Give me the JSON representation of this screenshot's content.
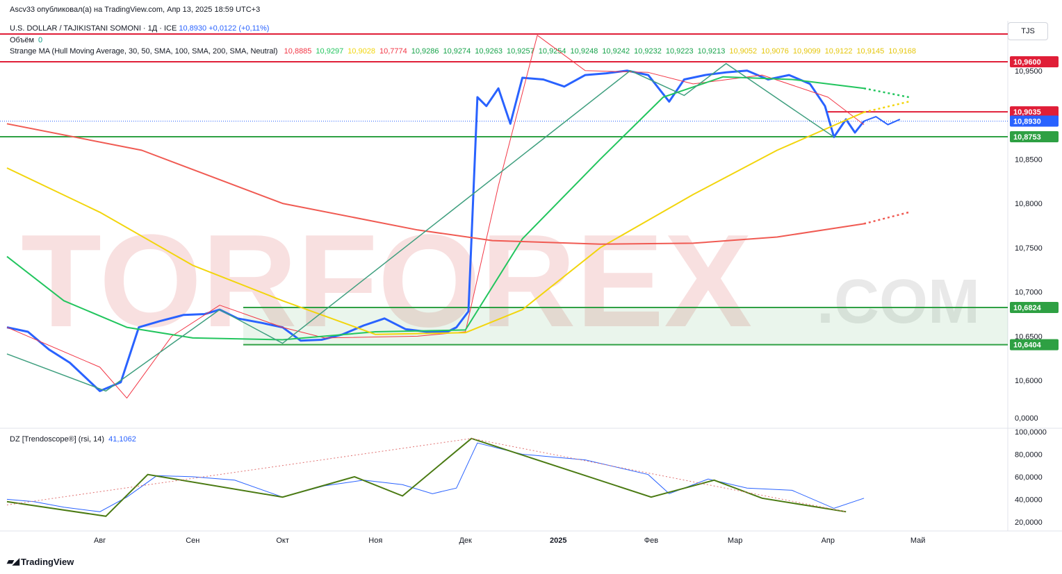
{
  "header": {
    "published": "Ascv33 опубликовал(а) на TradingView.com, Апр 13, 2025 18:59 UTC+3",
    "symbol": "U.S. DOLLAR / TAJIKISTANI SOMONI · 1Д · ICE",
    "price": "10,8930",
    "change": "+0,0122 (+0,11%)",
    "volume_label": "Объём",
    "volume_value": "0",
    "ma_label": "Strange MA (Hull Moving Average, 30, 50, SMA, 100, SMA, 200, SMA, Neutral)",
    "ma_values": [
      {
        "v": "10,8885",
        "c": "#f23645"
      },
      {
        "v": "10,9297",
        "c": "#22c55e"
      },
      {
        "v": "10,9028",
        "c": "#f2d50d"
      },
      {
        "v": "10,7774",
        "c": "#f23645"
      },
      {
        "v": "10,9286",
        "c": "#16a34a"
      },
      {
        "v": "10,9274",
        "c": "#16a34a"
      },
      {
        "v": "10,9263",
        "c": "#16a34a"
      },
      {
        "v": "10,9257",
        "c": "#16a34a"
      },
      {
        "v": "10,9254",
        "c": "#16a34a"
      },
      {
        "v": "10,9248",
        "c": "#16a34a"
      },
      {
        "v": "10,9242",
        "c": "#16a34a"
      },
      {
        "v": "10,9232",
        "c": "#16a34a"
      },
      {
        "v": "10,9223",
        "c": "#16a34a"
      },
      {
        "v": "10,9213",
        "c": "#16a34a"
      },
      {
        "v": "10,9052",
        "c": "#e5c60a"
      },
      {
        "v": "10,9076",
        "c": "#e5c60a"
      },
      {
        "v": "10,9099",
        "c": "#e5c60a"
      },
      {
        "v": "10,9122",
        "c": "#e5c60a"
      },
      {
        "v": "10,9145",
        "c": "#e5c60a"
      },
      {
        "v": "10,9168",
        "c": "#e5c60a"
      }
    ],
    "rsi_label": "DZ [Trendoscope®] (rsi, 14)",
    "rsi_value": "41,1062",
    "currency": "TJS"
  },
  "watermark": {
    "text": "TORFOREX",
    "suffix": ".COM"
  },
  "footer": {
    "brand": "TradingView"
  },
  "colors": {
    "price_line": "#2962ff",
    "hull": "#f23645",
    "sma50": "#22c55e",
    "sma100": "#f2d50d",
    "sma200": "#f05a52",
    "zigzag": "#3f9f7f",
    "rsi_zigzag": "#4a7a12",
    "support": "#2ea043",
    "resistance": "#e01e37"
  },
  "chart_data": [
    {
      "type": "line",
      "title": "U.S. DOLLAR / TAJIKISTANI SOMONI · 1Д · ICE",
      "ylim": [
        10.575,
        11.0
      ],
      "y_ticks": [
        "10,9500",
        "10,8500",
        "10,8000",
        "10,7500",
        "10,7000",
        "10,6500",
        "10,6000"
      ],
      "x_ticks": [
        "Авг",
        "Сен",
        "Окт",
        "Ноя",
        "Дек",
        "2025",
        "Фев",
        "Мар",
        "Апр",
        "Май"
      ],
      "x_range": [
        "2024-07-01",
        "2025-05-31"
      ],
      "series": [
        {
          "role": "price",
          "points": [
            [
              "2024-07-01",
              10.66
            ],
            [
              "2024-07-08",
              10.655
            ],
            [
              "2024-07-15",
              10.635
            ],
            [
              "2024-07-22",
              10.62
            ],
            [
              "2024-08-01",
              10.588
            ],
            [
              "2024-08-08",
              10.598
            ],
            [
              "2024-08-14",
              10.66
            ],
            [
              "2024-08-21",
              10.667
            ],
            [
              "2024-08-29",
              10.674
            ],
            [
              "2024-09-05",
              10.675
            ],
            [
              "2024-09-10",
              10.68
            ],
            [
              "2024-09-16",
              10.67
            ],
            [
              "2024-09-24",
              10.665
            ],
            [
              "2024-10-01",
              10.66
            ],
            [
              "2024-10-07",
              10.645
            ],
            [
              "2024-10-14",
              10.646
            ],
            [
              "2024-10-21",
              10.652
            ],
            [
              "2024-10-28",
              10.662
            ],
            [
              "2024-11-04",
              10.67
            ],
            [
              "2024-11-11",
              10.658
            ],
            [
              "2024-11-18",
              10.655
            ],
            [
              "2024-11-25",
              10.655
            ],
            [
              "2024-11-28",
              10.66
            ],
            [
              "2024-12-02",
              10.678
            ],
            [
              "2024-12-05",
              10.92
            ],
            [
              "2024-12-08",
              10.91
            ],
            [
              "2024-12-12",
              10.93
            ],
            [
              "2024-12-16",
              10.89
            ],
            [
              "2024-12-20",
              10.942
            ],
            [
              "2024-12-27",
              10.94
            ],
            [
              "2025-01-03",
              10.932
            ],
            [
              "2025-01-10",
              10.945
            ],
            [
              "2025-01-17",
              10.947
            ],
            [
              "2025-01-24",
              10.95
            ],
            [
              "2025-01-31",
              10.945
            ],
            [
              "2025-02-07",
              10.915
            ],
            [
              "2025-02-12",
              10.94
            ],
            [
              "2025-02-19",
              10.945
            ],
            [
              "2025-02-26",
              10.948
            ],
            [
              "2025-03-05",
              10.95
            ],
            [
              "2025-03-12",
              10.94
            ],
            [
              "2025-03-19",
              10.945
            ],
            [
              "2025-03-26",
              10.935
            ],
            [
              "2025-03-31",
              10.91
            ],
            [
              "2025-04-03",
              10.875
            ],
            [
              "2025-04-07",
              10.895
            ],
            [
              "2025-04-10",
              10.88
            ],
            [
              "2025-04-13",
              10.893
            ]
          ]
        },
        {
          "role": "projection",
          "points": [
            [
              "2025-04-13",
              10.893
            ],
            [
              "2025-04-17",
              10.898
            ],
            [
              "2025-04-21",
              10.889
            ],
            [
              "2025-04-25",
              10.895
            ]
          ]
        },
        {
          "role": "HMA 30",
          "points": [
            [
              "2024-07-01",
              10.66
            ],
            [
              "2024-08-01",
              10.615
            ],
            [
              "2024-08-10",
              10.58
            ],
            [
              "2024-08-25",
              10.65
            ],
            [
              "2024-09-10",
              10.685
            ],
            [
              "2024-10-01",
              10.66
            ],
            [
              "2024-10-15",
              10.648
            ],
            [
              "2024-11-15",
              10.65
            ],
            [
              "2024-12-01",
              10.655
            ],
            [
              "2024-12-12",
              10.82
            ],
            [
              "2024-12-25",
              10.99
            ],
            [
              "2025-01-10",
              10.95
            ],
            [
              "2025-01-31",
              10.948
            ],
            [
              "2025-02-15",
              10.935
            ],
            [
              "2025-03-10",
              10.945
            ],
            [
              "2025-04-01",
              10.92
            ],
            [
              "2025-04-13",
              10.889
            ]
          ]
        },
        {
          "role": "SMA 50",
          "points": [
            [
              "2024-07-01",
              10.74
            ],
            [
              "2024-07-20",
              10.69
            ],
            [
              "2024-08-10",
              10.66
            ],
            [
              "2024-09-01",
              10.648
            ],
            [
              "2024-10-01",
              10.646
            ],
            [
              "2024-11-01",
              10.655
            ],
            [
              "2024-12-01",
              10.657
            ],
            [
              "2024-12-20",
              10.76
            ],
            [
              "2025-01-15",
              10.85
            ],
            [
              "2025-02-05",
              10.92
            ],
            [
              "2025-02-25",
              10.943
            ],
            [
              "2025-03-20",
              10.94
            ],
            [
              "2025-04-13",
              10.93
            ]
          ]
        },
        {
          "role": "SMA 100",
          "points": [
            [
              "2024-07-01",
              10.84
            ],
            [
              "2024-08-01",
              10.79
            ],
            [
              "2024-09-01",
              10.73
            ],
            [
              "2024-10-01",
              10.69
            ],
            [
              "2024-11-01",
              10.652
            ],
            [
              "2024-12-01",
              10.654
            ],
            [
              "2024-12-20",
              10.68
            ],
            [
              "2025-01-15",
              10.75
            ],
            [
              "2025-02-15",
              10.81
            ],
            [
              "2025-03-15",
              10.86
            ],
            [
              "2025-04-13",
              10.903
            ]
          ]
        },
        {
          "role": "SMA 200",
          "points": [
            [
              "2024-07-01",
              10.89
            ],
            [
              "2024-08-15",
              10.86
            ],
            [
              "2024-10-01",
              10.8
            ],
            [
              "2024-11-15",
              10.77
            ],
            [
              "2024-12-10",
              10.758
            ],
            [
              "2025-01-15",
              10.754
            ],
            [
              "2025-02-15",
              10.755
            ],
            [
              "2025-03-15",
              10.762
            ],
            [
              "2025-04-13",
              10.777
            ]
          ]
        }
      ],
      "levels": [
        "10,9600",
        "10,9035",
        "10,8930",
        "10,8753",
        "10,6824",
        "10,6404"
      ]
    },
    {
      "type": "line",
      "title": "DZ [Trendoscope®] (rsi, 14)",
      "ylim": [
        15,
        100
      ],
      "y_ticks": [
        "100,0000",
        "80,0000",
        "60,0000",
        "40,0000",
        "20,0000"
      ],
      "series": [
        {
          "role": "rsi",
          "points": [
            [
              "2024-07-01",
              40
            ],
            [
              "2024-07-10",
              38
            ],
            [
              "2024-07-20",
              33
            ],
            [
              "2024-08-01",
              29
            ],
            [
              "2024-08-10",
              42
            ],
            [
              "2024-08-20",
              61
            ],
            [
              "2024-09-01",
              60
            ],
            [
              "2024-09-15",
              57
            ],
            [
              "2024-10-01",
              42
            ],
            [
              "2024-10-15",
              52
            ],
            [
              "2024-10-28",
              57
            ],
            [
              "2024-11-10",
              53
            ],
            [
              "2024-11-20",
              45
            ],
            [
              "2024-11-28",
              50
            ],
            [
              "2024-12-05",
              90
            ],
            [
              "2024-12-20",
              80
            ],
            [
              "2025-01-10",
              75
            ],
            [
              "2025-01-31",
              62
            ],
            [
              "2025-02-07",
              45
            ],
            [
              "2025-02-20",
              58
            ],
            [
              "2025-03-05",
              50
            ],
            [
              "2025-03-20",
              48
            ],
            [
              "2025-04-03",
              32
            ],
            [
              "2025-04-13",
              41
            ]
          ]
        }
      ],
      "zigzag": [
        [
          "2024-07-01",
          38
        ],
        [
          "2024-08-03",
          25
        ],
        [
          "2024-08-17",
          62
        ],
        [
          "2024-10-01",
          42
        ],
        [
          "2024-10-25",
          60
        ],
        [
          "2024-11-10",
          43
        ],
        [
          "2024-12-03",
          94
        ],
        [
          "2025-02-01",
          42
        ],
        [
          "2025-02-22",
          57
        ],
        [
          "2025-03-10",
          41
        ],
        [
          "2025-04-07",
          29
        ]
      ]
    }
  ]
}
